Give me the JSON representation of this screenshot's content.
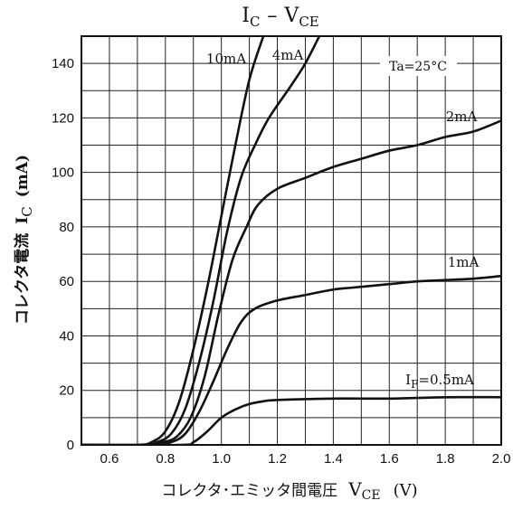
{
  "chart_data": {
    "type": "line",
    "title": "IC - VCE",
    "title_parts": {
      "main": "I",
      "sub": "C",
      "dash": "–",
      "main2": "V",
      "sub2": "CE"
    },
    "xlabel": "コレクタ･エミッタ間電圧 VCE (V)",
    "xlabel_parts": {
      "jp": "コレクタ･エミッタ間電圧",
      "sym": "V",
      "sub": "CE",
      "unit": "(V)"
    },
    "ylabel": "コレクタ電流 IC (mA)",
    "ylabel_parts": {
      "jp": "コレクタ電流",
      "sym": "I",
      "sub": "C",
      "unit": "(mA)"
    },
    "xlim": [
      0.5,
      2.0
    ],
    "ylim": [
      0,
      150
    ],
    "x_ticks": [
      "0.6",
      "0.8",
      "1.0",
      "1.2",
      "1.4",
      "1.6",
      "1.8",
      "2.0"
    ],
    "y_ticks": [
      "0",
      "20",
      "40",
      "60",
      "80",
      "100",
      "120",
      "140"
    ],
    "grid": true,
    "annotation": "Ta=25°C",
    "series": [
      {
        "name": "10mA",
        "label": "10mA",
        "points": [
          [
            0.5,
            0
          ],
          [
            0.7,
            0
          ],
          [
            0.75,
            1
          ],
          [
            0.8,
            5
          ],
          [
            0.85,
            16
          ],
          [
            0.9,
            35
          ],
          [
            0.95,
            58
          ],
          [
            1.0,
            84
          ],
          [
            1.05,
            110
          ],
          [
            1.1,
            134
          ],
          [
            1.15,
            150
          ]
        ]
      },
      {
        "name": "4mA",
        "label": "4mA",
        "points": [
          [
            0.5,
            0
          ],
          [
            0.72,
            0
          ],
          [
            0.77,
            1
          ],
          [
            0.82,
            4
          ],
          [
            0.87,
            13
          ],
          [
            0.92,
            30
          ],
          [
            0.97,
            52
          ],
          [
            1.02,
            78
          ],
          [
            1.07,
            98
          ],
          [
            1.12,
            110
          ],
          [
            1.17,
            120
          ],
          [
            1.25,
            132
          ],
          [
            1.3,
            140
          ],
          [
            1.35,
            150
          ]
        ]
      },
      {
        "name": "2mA",
        "label": "2mA",
        "points": [
          [
            0.5,
            0
          ],
          [
            0.73,
            0
          ],
          [
            0.79,
            1
          ],
          [
            0.84,
            3
          ],
          [
            0.89,
            10
          ],
          [
            0.94,
            25
          ],
          [
            0.99,
            48
          ],
          [
            1.04,
            68
          ],
          [
            1.09,
            80
          ],
          [
            1.13,
            88
          ],
          [
            1.2,
            94
          ],
          [
            1.3,
            98
          ],
          [
            1.4,
            102
          ],
          [
            1.5,
            105
          ],
          [
            1.6,
            108
          ],
          [
            1.7,
            110
          ],
          [
            1.8,
            113
          ],
          [
            1.9,
            115
          ],
          [
            2.0,
            119
          ]
        ]
      },
      {
        "name": "1mA",
        "label": "1mA",
        "points": [
          [
            0.5,
            0
          ],
          [
            0.75,
            0
          ],
          [
            0.82,
            1
          ],
          [
            0.87,
            4
          ],
          [
            0.92,
            12
          ],
          [
            0.97,
            23
          ],
          [
            1.02,
            35
          ],
          [
            1.07,
            45
          ],
          [
            1.12,
            50
          ],
          [
            1.2,
            53
          ],
          [
            1.3,
            55
          ],
          [
            1.4,
            57
          ],
          [
            1.5,
            58
          ],
          [
            1.6,
            59
          ],
          [
            1.7,
            60
          ],
          [
            1.8,
            60.5
          ],
          [
            1.9,
            61
          ],
          [
            2.0,
            62
          ]
        ]
      },
      {
        "name": "IF=0.5mA",
        "label": "I",
        "label_sub": "F",
        "label_rest": "=0.5mA",
        "points": [
          [
            0.5,
            0
          ],
          [
            0.85,
            0
          ],
          [
            0.9,
            1
          ],
          [
            0.95,
            5
          ],
          [
            1.0,
            10
          ],
          [
            1.05,
            13
          ],
          [
            1.1,
            15
          ],
          [
            1.15,
            16
          ],
          [
            1.2,
            16.5
          ],
          [
            1.4,
            17
          ],
          [
            1.6,
            17
          ],
          [
            1.8,
            17.5
          ],
          [
            2.0,
            17.5
          ]
        ]
      }
    ]
  }
}
